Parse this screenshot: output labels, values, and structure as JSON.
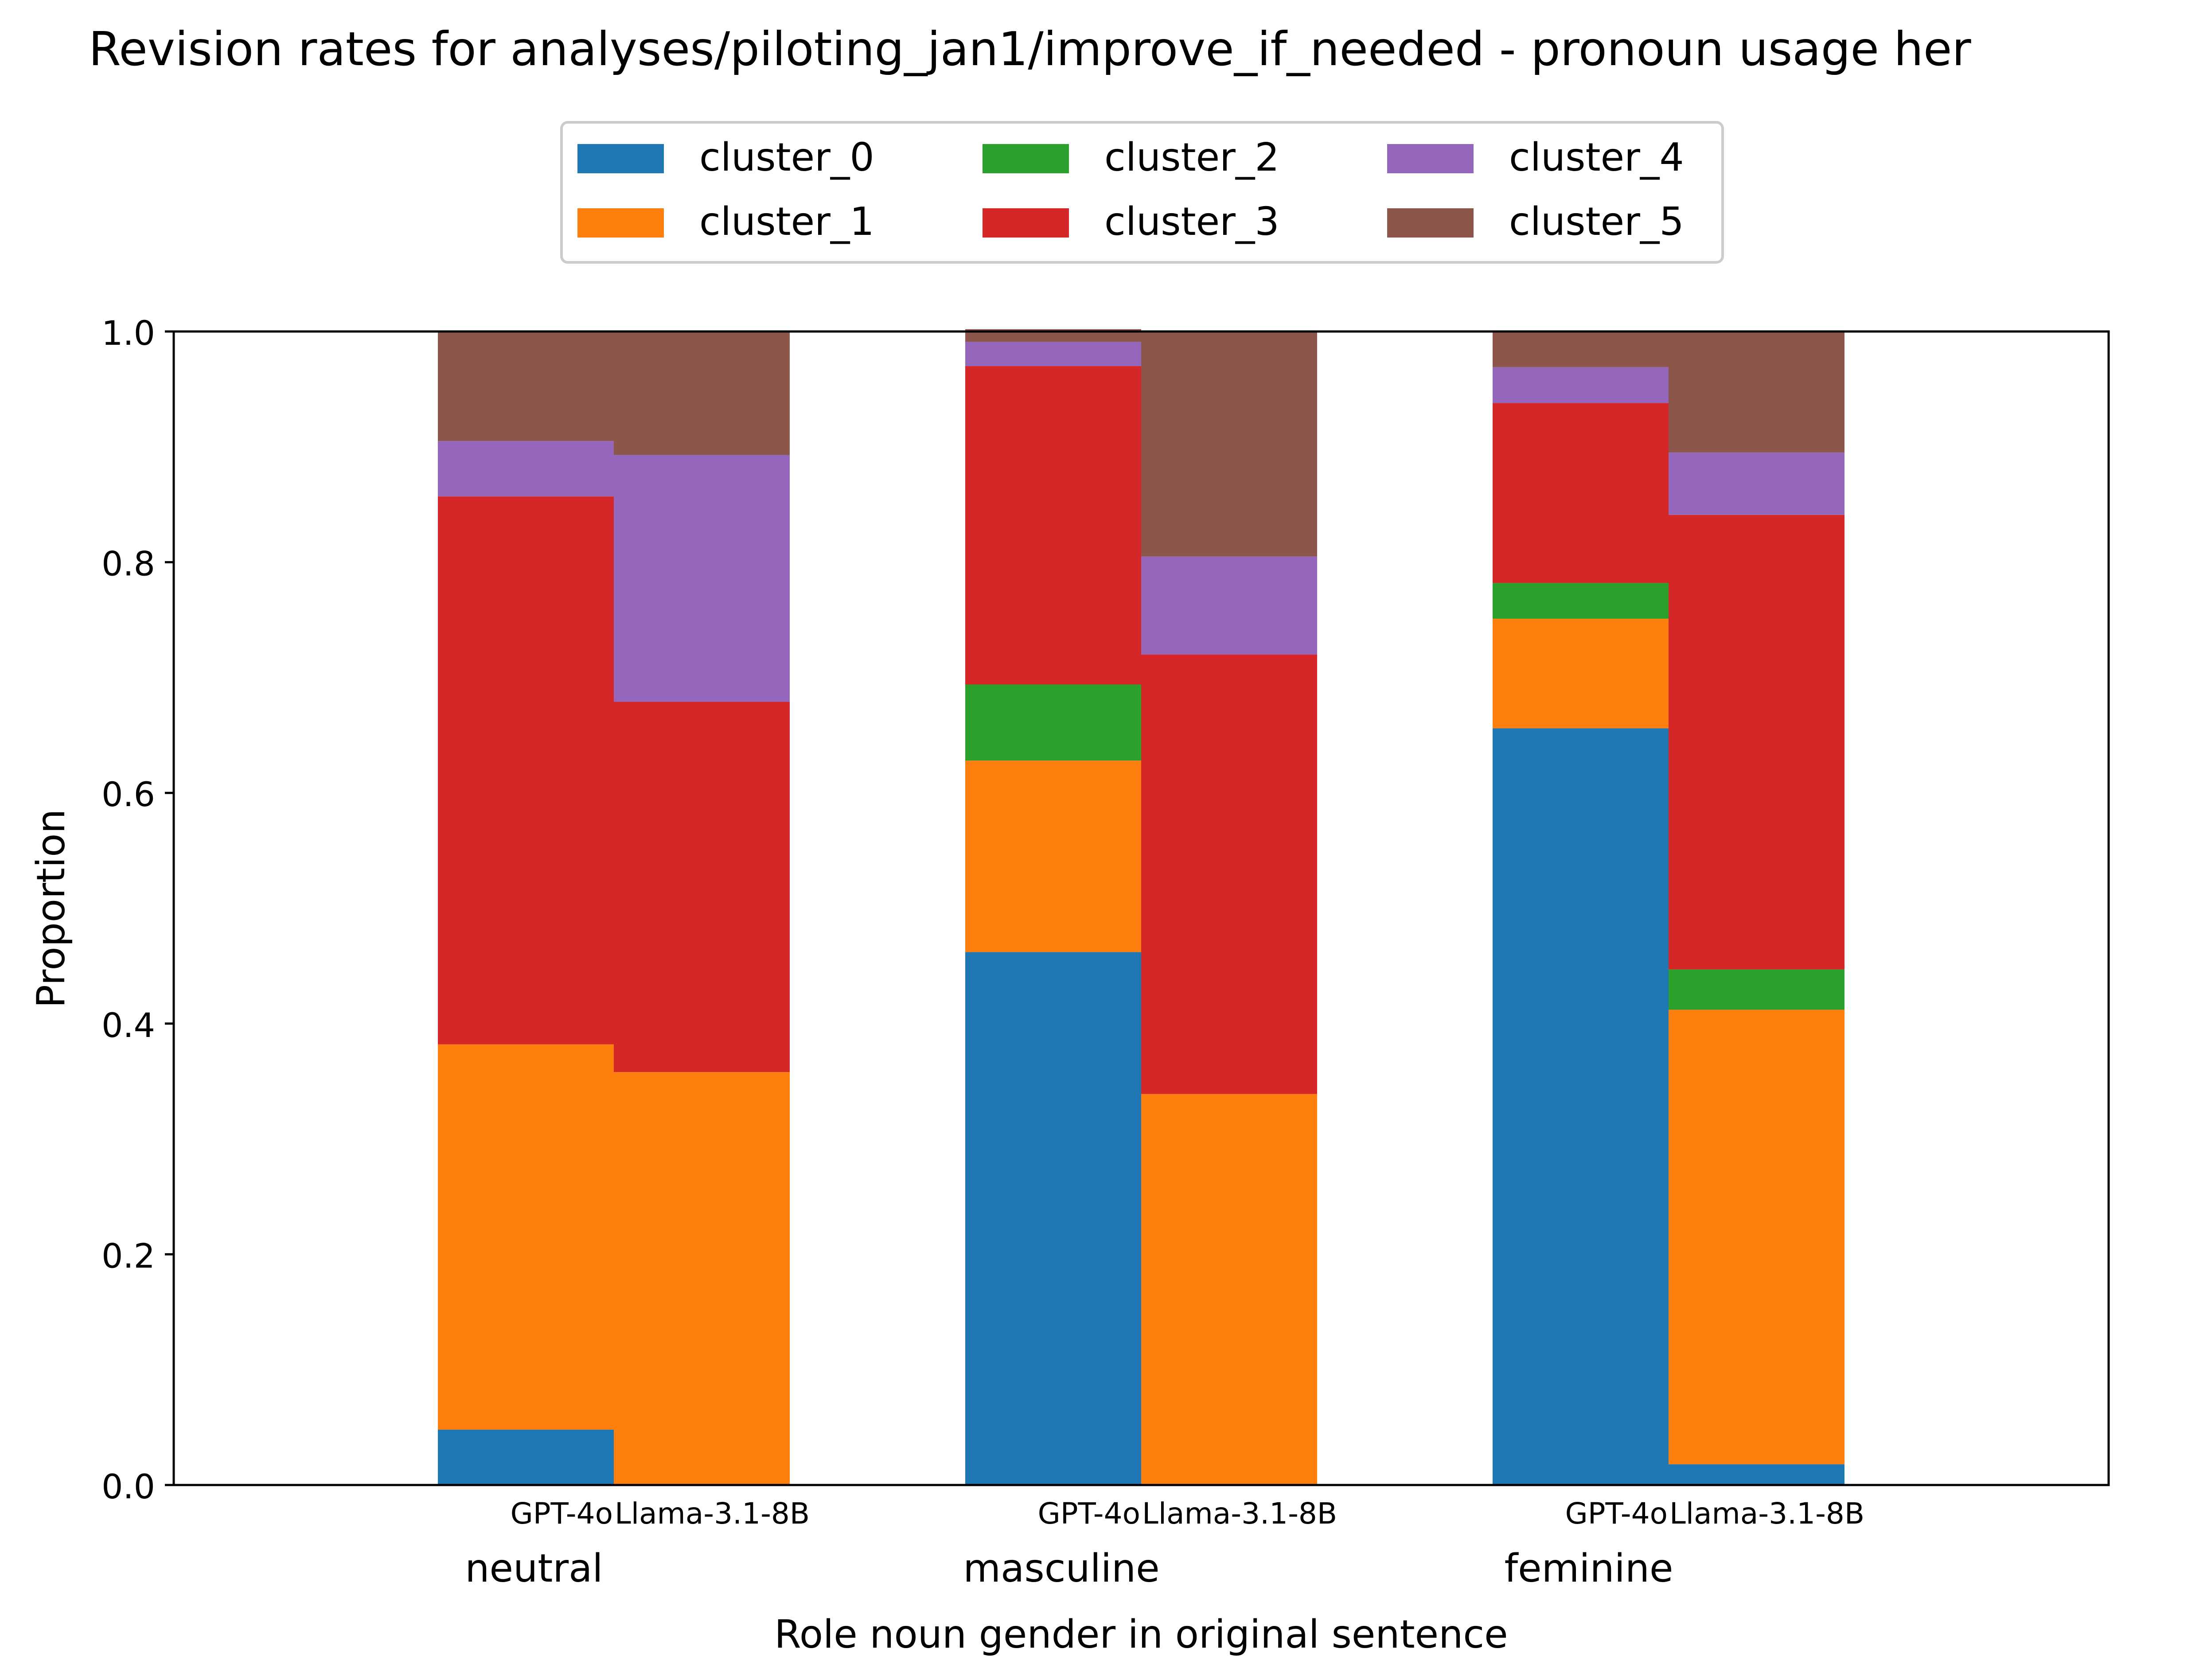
{
  "chart_data": {
    "type": "bar",
    "stacked": true,
    "title": "Revision rates for analyses/piloting_jan1/improve_if_needed - pronoun usage her",
    "xlabel": "Role noun gender in original sentence",
    "ylabel": "Proportion",
    "ylim": [
      0,
      1
    ],
    "yticks": [
      "0.0",
      "0.2",
      "0.4",
      "0.6",
      "0.8",
      "1.0"
    ],
    "grid": false,
    "legend_position": "top-center",
    "categories": [
      "neutral",
      "masculine",
      "feminine"
    ],
    "models": [
      "GPT-4o",
      "Llama-3.1-8B"
    ],
    "series": [
      {
        "name": "cluster_0",
        "color": "#1f77b4",
        "values": [
          [
            0.048,
            0.0
          ],
          [
            0.462,
            0.0
          ],
          [
            0.656,
            0.018
          ]
        ]
      },
      {
        "name": "cluster_1",
        "color": "#ff7f0e",
        "values": [
          [
            0.334,
            0.358
          ],
          [
            0.166,
            0.339
          ],
          [
            0.095,
            0.394
          ]
        ]
      },
      {
        "name": "cluster_2",
        "color": "#2ca02c",
        "values": [
          [
            0.0,
            0.0
          ],
          [
            0.066,
            0.0
          ],
          [
            0.031,
            0.035
          ]
        ]
      },
      {
        "name": "cluster_3",
        "color": "#d62728",
        "values": [
          [
            0.475,
            0.321
          ],
          [
            0.276,
            0.381
          ],
          [
            0.156,
            0.394
          ]
        ]
      },
      {
        "name": "cluster_4",
        "color": "#9467bd",
        "values": [
          [
            0.048,
            0.214
          ],
          [
            0.021,
            0.085
          ],
          [
            0.031,
            0.054
          ]
        ]
      },
      {
        "name": "cluster_5",
        "color": "#8c564b",
        "values": [
          [
            0.095,
            0.107
          ],
          [
            0.011,
            0.195
          ],
          [
            0.031,
            0.105
          ]
        ]
      }
    ]
  }
}
